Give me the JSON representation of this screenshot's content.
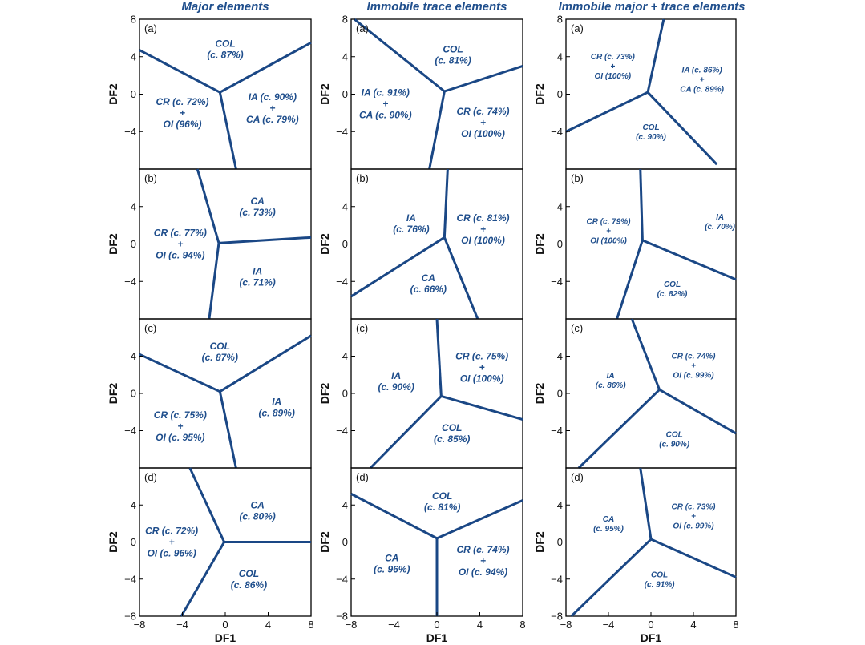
{
  "figure": {
    "column_titles": [
      "Major elements",
      "Immobile trace elements",
      "Immobile major + trace elements"
    ],
    "x_axis_label": "DF1",
    "y_axis_label": "DF2"
  },
  "chart_data": [
    {
      "id": "major-a",
      "type": "scatter",
      "column": 0,
      "row": 0,
      "panel_label": "(a)",
      "xlabel": "",
      "ylabel": "DF2",
      "xlim": [
        -8,
        8
      ],
      "ylim": [
        -8,
        8
      ],
      "xticks": [],
      "yticks": [
        8,
        4,
        0,
        -4
      ],
      "grid": false,
      "center": [
        -0.5,
        0.2
      ],
      "boundaries": [
        [
          -8,
          4.7
        ],
        [
          8,
          5.5
        ],
        [
          1,
          -8
        ]
      ],
      "regions": [
        {
          "lines": [
            "COL",
            "(c. 87%)"
          ],
          "x": 0,
          "y": 4.8
        },
        {
          "lines": [
            "CR (c. 72%)",
            "+",
            "OI (96%)"
          ],
          "x": -4,
          "y": -2
        },
        {
          "lines": [
            "IA (c. 90%)",
            "+",
            "CA (c. 79%)"
          ],
          "x": 4.4,
          "y": -1.5
        }
      ]
    },
    {
      "id": "major-b",
      "type": "scatter",
      "column": 0,
      "row": 1,
      "panel_label": "(b)",
      "xlabel": "",
      "ylabel": "DF2",
      "xlim": [
        -8,
        8
      ],
      "ylim": [
        -8,
        8
      ],
      "xticks": [],
      "yticks": [
        4,
        0,
        -4
      ],
      "grid": false,
      "center": [
        -0.6,
        0.1
      ],
      "boundaries": [
        [
          -2.6,
          8
        ],
        [
          8,
          0.7
        ],
        [
          -1.5,
          -8
        ]
      ],
      "regions": [
        {
          "lines": [
            "CA",
            "(c. 73%)"
          ],
          "x": 3,
          "y": 4
        },
        {
          "lines": [
            "CR (c. 77%)",
            "+",
            "OI (c. 94%)"
          ],
          "x": -4.2,
          "y": 0
        },
        {
          "lines": [
            "IA",
            "(c. 71%)"
          ],
          "x": 3,
          "y": -3.5
        }
      ]
    },
    {
      "id": "major-c",
      "type": "scatter",
      "column": 0,
      "row": 2,
      "panel_label": "(c)",
      "xlabel": "",
      "ylabel": "DF2",
      "xlim": [
        -8,
        8
      ],
      "ylim": [
        -8,
        8
      ],
      "xticks": [],
      "yticks": [
        4,
        0,
        -4
      ],
      "grid": false,
      "center": [
        -0.5,
        0.2
      ],
      "boundaries": [
        [
          -8,
          4.2
        ],
        [
          8,
          6.2
        ],
        [
          1,
          -8
        ]
      ],
      "regions": [
        {
          "lines": [
            "COL",
            "(c. 87%)"
          ],
          "x": -0.5,
          "y": 4.5
        },
        {
          "lines": [
            "CR (c. 75%)",
            "+",
            "OI (c. 95%)"
          ],
          "x": -4.2,
          "y": -3.5
        },
        {
          "lines": [
            "IA",
            "(c. 89%)"
          ],
          "x": 4.8,
          "y": -1.5
        }
      ]
    },
    {
      "id": "major-d",
      "type": "scatter",
      "column": 0,
      "row": 3,
      "panel_label": "(d)",
      "xlabel": "DF1",
      "ylabel": "DF2",
      "xlim": [
        -8,
        8
      ],
      "ylim": [
        -8,
        8
      ],
      "xticks": [
        -8,
        -4,
        0,
        4,
        8
      ],
      "yticks": [
        4,
        0,
        -4,
        -8
      ],
      "grid": false,
      "center": [
        -0.1,
        0
      ],
      "boundaries": [
        [
          -3.3,
          8
        ],
        [
          8,
          0
        ],
        [
          -4.1,
          -8
        ]
      ],
      "regions": [
        {
          "lines": [
            "CA",
            "(c. 80%)"
          ],
          "x": 3,
          "y": 3.4
        },
        {
          "lines": [
            "CR (c. 72%)",
            "+",
            "OI (c. 96%)"
          ],
          "x": -5,
          "y": 0
        },
        {
          "lines": [
            "COL",
            "(c. 86%)"
          ],
          "x": 2.2,
          "y": -4
        }
      ]
    },
    {
      "id": "trace-a",
      "type": "scatter",
      "column": 1,
      "row": 0,
      "panel_label": "(a)",
      "xlabel": "",
      "ylabel": "DF2",
      "xlim": [
        -8,
        8
      ],
      "ylim": [
        -8,
        8
      ],
      "xticks": [],
      "yticks": [
        8,
        4,
        0,
        -4
      ],
      "grid": false,
      "center": [
        0.7,
        0.3
      ],
      "boundaries": [
        [
          -7.7,
          8
        ],
        [
          8,
          3
        ],
        [
          -0.7,
          -8
        ]
      ],
      "regions": [
        {
          "lines": [
            "COL",
            "(c. 81%)"
          ],
          "x": 1.5,
          "y": 4.2
        },
        {
          "lines": [
            "IA (c. 91%)",
            "+",
            "CA (c. 90%)"
          ],
          "x": -4.8,
          "y": -1
        },
        {
          "lines": [
            "CR (c. 74%)",
            "+",
            "OI (100%)"
          ],
          "x": 4.3,
          "y": -3
        }
      ]
    },
    {
      "id": "trace-b",
      "type": "scatter",
      "column": 1,
      "row": 1,
      "panel_label": "(b)",
      "xlabel": "",
      "ylabel": "DF2",
      "xlim": [
        -8,
        8
      ],
      "ylim": [
        -8,
        8
      ],
      "xticks": [],
      "yticks": [
        4,
        0,
        -4
      ],
      "grid": false,
      "center": [
        0.7,
        0.7
      ],
      "boundaries": [
        [
          1,
          8
        ],
        [
          -8,
          -5.6
        ],
        [
          3.8,
          -8
        ]
      ],
      "regions": [
        {
          "lines": [
            "IA",
            "(c. 76%)"
          ],
          "x": -2.4,
          "y": 2.2
        },
        {
          "lines": [
            "CR (c. 81%)",
            "+",
            "OI (100%)"
          ],
          "x": 4.3,
          "y": 1.6
        },
        {
          "lines": [
            "CA",
            "(c. 66%)"
          ],
          "x": -0.8,
          "y": -4.2
        }
      ]
    },
    {
      "id": "trace-c",
      "type": "scatter",
      "column": 1,
      "row": 2,
      "panel_label": "(c)",
      "xlabel": "",
      "ylabel": "DF2",
      "xlim": [
        -8,
        8
      ],
      "ylim": [
        -8,
        8
      ],
      "xticks": [],
      "yticks": [
        4,
        0,
        -4
      ],
      "grid": false,
      "center": [
        0.4,
        -0.3
      ],
      "boundaries": [
        [
          0,
          8
        ],
        [
          8,
          -2.8
        ],
        [
          -6.2,
          -8
        ]
      ],
      "regions": [
        {
          "lines": [
            "CR (c. 75%)",
            "+",
            "OI (100%)"
          ],
          "x": 4.2,
          "y": 2.8
        },
        {
          "lines": [
            "IA",
            "(c. 90%)"
          ],
          "x": -3.8,
          "y": 1.3
        },
        {
          "lines": [
            "COL",
            "(c. 85%)"
          ],
          "x": 1.4,
          "y": -4.3
        }
      ]
    },
    {
      "id": "trace-d",
      "type": "scatter",
      "column": 1,
      "row": 3,
      "panel_label": "(d)",
      "xlabel": "DF1",
      "ylabel": "DF2",
      "xlim": [
        -8,
        8
      ],
      "ylim": [
        -8,
        8
      ],
      "xticks": [
        -8,
        -4,
        0,
        4,
        8
      ],
      "yticks": [
        4,
        0,
        -4,
        -8
      ],
      "grid": false,
      "center": [
        0,
        0.4
      ],
      "boundaries": [
        [
          -8,
          5.2
        ],
        [
          8,
          4.5
        ],
        [
          0,
          -8
        ]
      ],
      "regions": [
        {
          "lines": [
            "COL",
            "(c. 81%)"
          ],
          "x": 0.5,
          "y": 4.4
        },
        {
          "lines": [
            "CA",
            "(c. 96%)"
          ],
          "x": -4.2,
          "y": -2.3
        },
        {
          "lines": [
            "CR (c. 74%)",
            "+",
            "OI (c. 94%)"
          ],
          "x": 4.3,
          "y": -2
        }
      ]
    },
    {
      "id": "combined-a",
      "type": "scatter",
      "column": 2,
      "row": 0,
      "panel_label": "(a)",
      "xlabel": "",
      "ylabel": "DF2",
      "xlim": [
        -8,
        8
      ],
      "ylim": [
        -8,
        8
      ],
      "xticks": [],
      "yticks": [
        8,
        4,
        0,
        -4
      ],
      "grid": false,
      "center": [
        -0.3,
        0.2
      ],
      "boundaries": [
        [
          1.2,
          8
        ],
        [
          -8,
          -4
        ],
        [
          6.2,
          -7.5
        ]
      ],
      "regions": [
        {
          "lines": [
            "CR (c. 73%)",
            "+",
            "OI (100%)"
          ],
          "x": -3.6,
          "y": 3
        },
        {
          "lines": [
            "IA (c. 86%)",
            "+",
            "CA (c. 89%)"
          ],
          "x": 4.8,
          "y": 1.6
        },
        {
          "lines": [
            "COL",
            "(c. 90%)"
          ],
          "x": 0,
          "y": -4
        }
      ]
    },
    {
      "id": "combined-b",
      "type": "scatter",
      "column": 2,
      "row": 1,
      "panel_label": "(b)",
      "xlabel": "",
      "ylabel": "DF2",
      "xlim": [
        -8,
        8
      ],
      "ylim": [
        -8,
        8
      ],
      "xticks": [],
      "yticks": [
        4,
        0,
        -4
      ],
      "grid": false,
      "center": [
        -0.8,
        0.4
      ],
      "boundaries": [
        [
          -1,
          8
        ],
        [
          8,
          -3.8
        ],
        [
          -3.2,
          -8
        ]
      ],
      "regions": [
        {
          "lines": [
            "CR (c. 79%)",
            "+",
            "OI (100%)"
          ],
          "x": -4,
          "y": 1.4
        },
        {
          "lines": [
            "IA",
            "(c. 70%)"
          ],
          "x": 6.5,
          "y": 2.4
        },
        {
          "lines": [
            "COL",
            "(c. 82%)"
          ],
          "x": 2,
          "y": -4.8
        }
      ]
    },
    {
      "id": "combined-c",
      "type": "scatter",
      "column": 2,
      "row": 2,
      "panel_label": "(c)",
      "xlabel": "",
      "ylabel": "DF2",
      "xlim": [
        -8,
        8
      ],
      "ylim": [
        -8,
        8
      ],
      "xticks": [],
      "yticks": [
        4,
        0,
        -4
      ],
      "grid": false,
      "center": [
        0.8,
        0.4
      ],
      "boundaries": [
        [
          -1.8,
          8
        ],
        [
          8,
          -4.3
        ],
        [
          -6.8,
          -8
        ]
      ],
      "regions": [
        {
          "lines": [
            "CR (c. 74%)",
            "+",
            "OI (c. 99%)"
          ],
          "x": 4,
          "y": 3
        },
        {
          "lines": [
            "IA",
            "(c. 86%)"
          ],
          "x": -3.8,
          "y": 1.4
        },
        {
          "lines": [
            "COL",
            "(c. 90%)"
          ],
          "x": 2.2,
          "y": -4.9
        }
      ]
    },
    {
      "id": "combined-d",
      "type": "scatter",
      "column": 2,
      "row": 3,
      "panel_label": "(d)",
      "xlabel": "DF1",
      "ylabel": "DF2",
      "xlim": [
        -8,
        8
      ],
      "ylim": [
        -8,
        8
      ],
      "xticks": [
        -8,
        -4,
        0,
        4,
        8
      ],
      "yticks": [
        4,
        0,
        -4,
        -8
      ],
      "grid": false,
      "center": [
        0,
        0.3
      ],
      "boundaries": [
        [
          -1,
          8
        ],
        [
          8,
          -3.8
        ],
        [
          -7.5,
          -8
        ]
      ],
      "regions": [
        {
          "lines": [
            "CA",
            "(c. 95%)"
          ],
          "x": -4,
          "y": 2
        },
        {
          "lines": [
            "CR (c. 73%)",
            "+",
            "OI (c. 99%)"
          ],
          "x": 4,
          "y": 2.8
        },
        {
          "lines": [
            "COL",
            "(c. 91%)"
          ],
          "x": 0.8,
          "y": -4
        }
      ]
    }
  ]
}
